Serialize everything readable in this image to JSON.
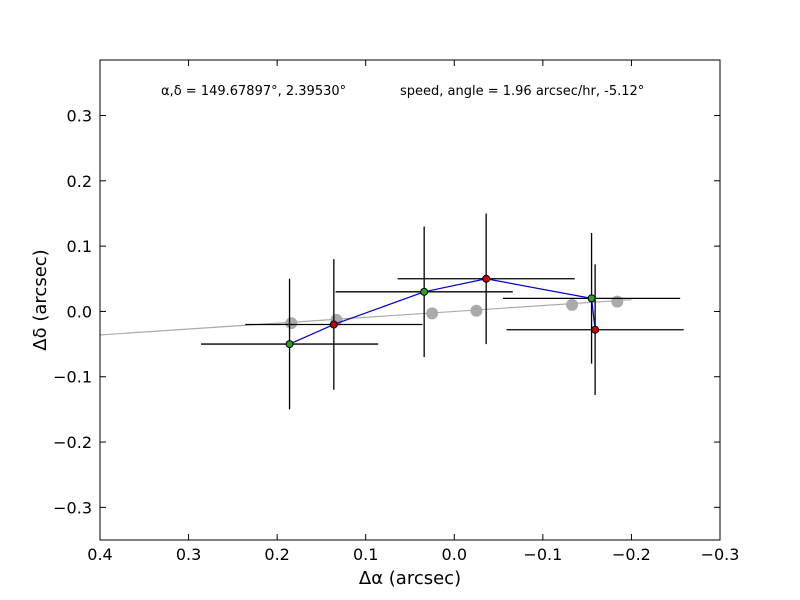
{
  "chart_data": {
    "type": "scatter",
    "title": "",
    "xlabel": "Δα (arcsec)",
    "ylabel": "Δδ (arcsec)",
    "xlim": [
      0.4,
      -0.3
    ],
    "ylim": [
      -0.35,
      0.385
    ],
    "x_ticks": [
      0.4,
      0.3,
      0.2,
      0.1,
      0.0,
      -0.1,
      -0.2,
      -0.3
    ],
    "x_tick_labels": [
      "0.4",
      "0.3",
      "0.2",
      "0.1",
      "0.0",
      "−0.1",
      "−0.2",
      "−0.3"
    ],
    "y_ticks": [
      0.3,
      0.2,
      0.1,
      0.0,
      -0.1,
      -0.2,
      -0.3
    ],
    "y_tick_labels": [
      "0.3",
      "0.2",
      "0.1",
      "0.0",
      "−0.1",
      "−0.2",
      "−0.3"
    ],
    "grid": false,
    "annotations": {
      "coords": "α,δ = 149.67897°, 2.39530°",
      "motion": "speed, angle = 1.96 arcsec/hr, -5.12°"
    },
    "observed_points": [
      {
        "x": 0.186,
        "y": -0.05,
        "xerr": 0.1,
        "yerr": 0.1,
        "color": "#2ca02c"
      },
      {
        "x": 0.136,
        "y": -0.02,
        "xerr": 0.1,
        "yerr": 0.1,
        "color": "#cc0000"
      },
      {
        "x": 0.034,
        "y": 0.03,
        "xerr": 0.1,
        "yerr": 0.1,
        "color": "#2ca02c"
      },
      {
        "x": -0.036,
        "y": 0.05,
        "xerr": 0.1,
        "yerr": 0.1,
        "color": "#cc0000"
      },
      {
        "x": -0.155,
        "y": 0.02,
        "xerr": 0.1,
        "yerr": 0.1,
        "color": "#2ca02c"
      },
      {
        "x": -0.159,
        "y": -0.028,
        "xerr": 0.1,
        "yerr": 0.1,
        "color": "#cc0000"
      }
    ],
    "predicted_points": [
      {
        "x": 0.184,
        "y": -0.018
      },
      {
        "x": 0.133,
        "y": -0.013
      },
      {
        "x": 0.025,
        "y": -0.003
      },
      {
        "x": -0.025,
        "y": 0.001
      },
      {
        "x": -0.133,
        "y": 0.01
      },
      {
        "x": -0.184,
        "y": 0.015
      }
    ],
    "fit_line": {
      "x": [
        0.4,
        -0.2
      ],
      "y": [
        -0.036,
        0.018
      ]
    },
    "colors": {
      "connector": "#0000cc",
      "fit_line": "#aaaaaa",
      "predicted": "#aaaaaa",
      "errorbar": "#000000"
    }
  }
}
